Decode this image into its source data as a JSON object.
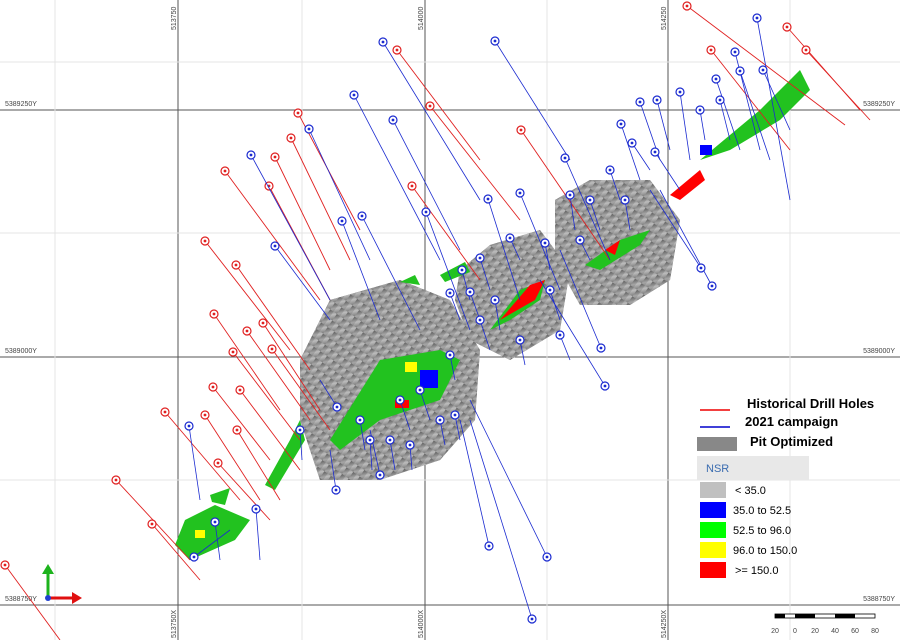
{
  "map": {
    "grid_labels": {
      "y_left": [
        "5389250Y",
        "5389000Y",
        "5388750Y"
      ],
      "y_right": [
        "5389250Y",
        "5389000Y",
        "5388750Y"
      ],
      "x_top": [
        "513750",
        "514000",
        "514250"
      ],
      "x_bottom": [
        "513750X",
        "514000X",
        "514250X"
      ]
    },
    "legend": {
      "items": [
        "Historical Drill Holes",
        "2021 campaign",
        "Pit Optimized"
      ],
      "nsr_title": "NSR",
      "nsr_classes": [
        "< 35.0",
        "35.0 to 52.5",
        "52.5 to 96.0",
        "96.0 to 150.0",
        ">= 150.0"
      ]
    },
    "scale_bar": {
      "labels": [
        "20",
        "0",
        "20",
        "40",
        "60",
        "80"
      ]
    }
  }
}
